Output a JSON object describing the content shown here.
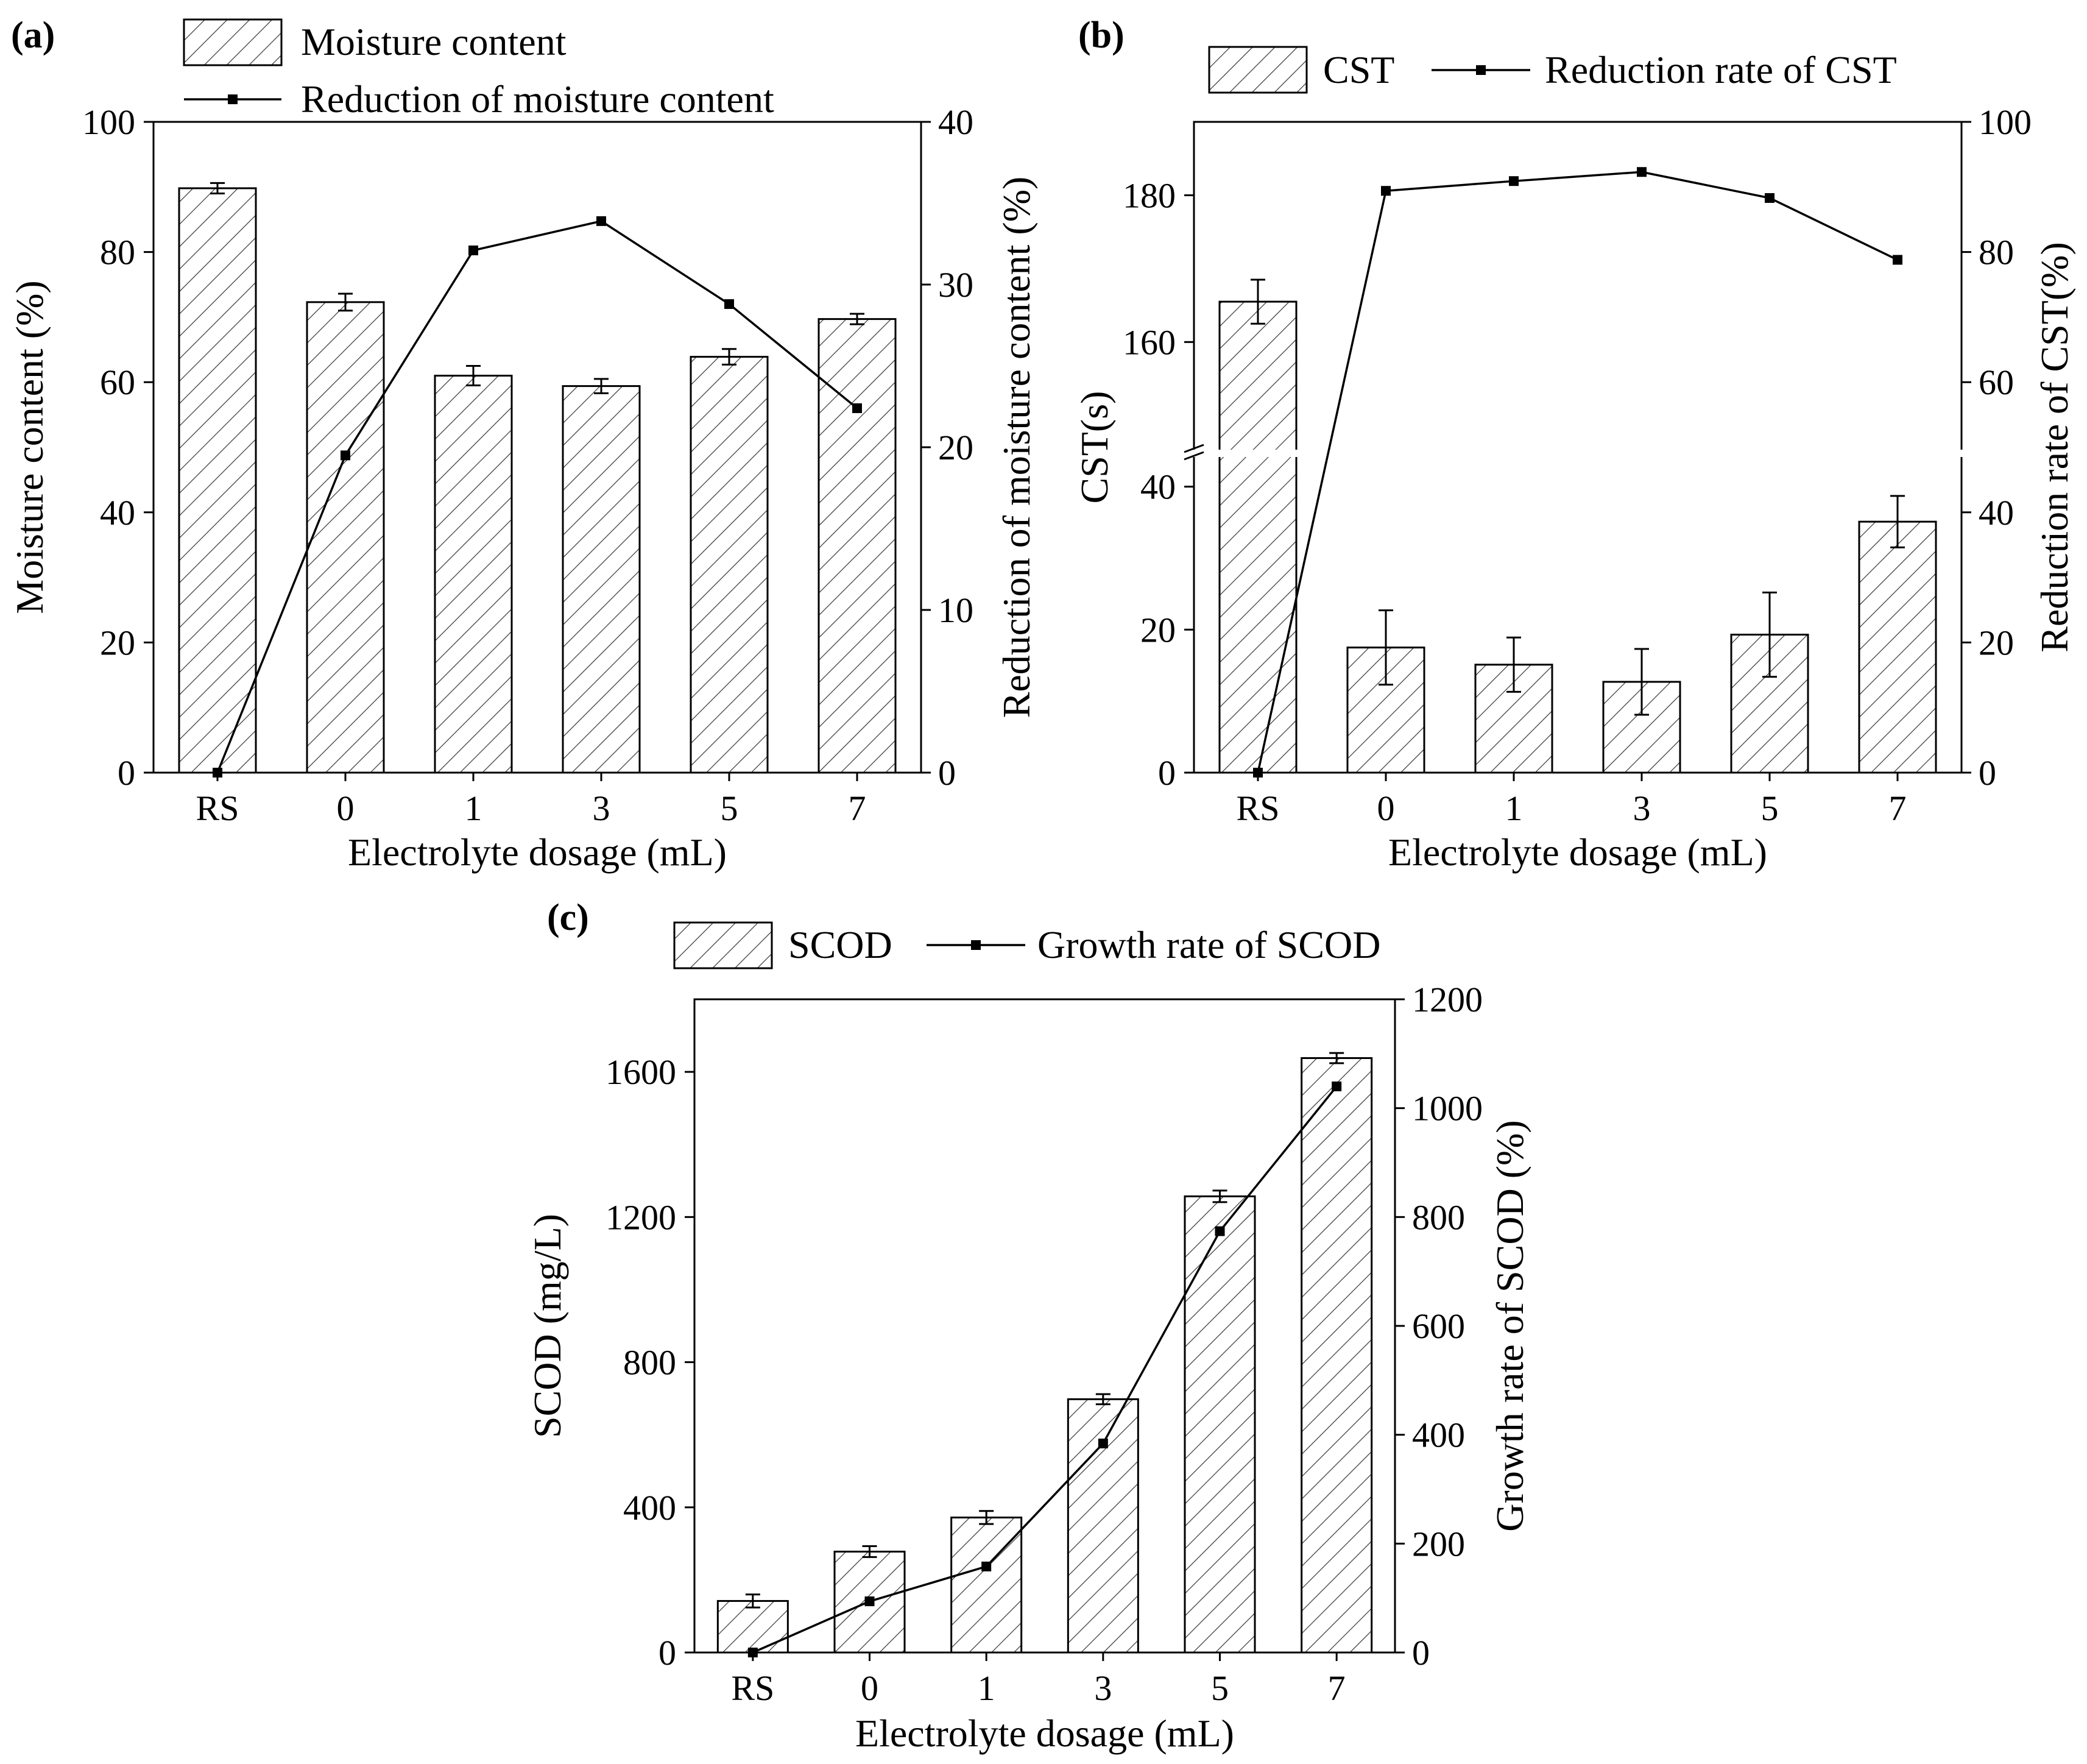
{
  "chart_data": [
    {
      "type": "bar+line",
      "panel_label": "(a)",
      "categories": [
        "RS",
        "0",
        "1",
        "3",
        "5",
        "7"
      ],
      "xlabel": "Electrolyte dosage (mL)",
      "bars": {
        "name": "Moisture content",
        "values": [
          89.8,
          72.3,
          61.0,
          59.4,
          63.9,
          69.7
        ],
        "errors": [
          0.8,
          1.3,
          1.5,
          1.1,
          1.2,
          0.8
        ]
      },
      "line": {
        "name": "Reduction of moisture content",
        "values": [
          0,
          19.5,
          32.1,
          33.9,
          28.8,
          22.4
        ]
      },
      "ylabel": "Moisture content (%)",
      "ylim": [
        0,
        100
      ],
      "yticks": [
        "0",
        "20",
        "40",
        "60",
        "80",
        "100"
      ],
      "y2label": "Reduction of moisture content (%)",
      "y2lim": [
        0,
        40
      ],
      "y2ticks": [
        "0",
        "10",
        "20",
        "30",
        "40"
      ]
    },
    {
      "type": "bar+line",
      "panel_label": "(b)",
      "categories": [
        "RS",
        "0",
        "1",
        "3",
        "5",
        "7"
      ],
      "xlabel": "Electrolyte dosage (mL)",
      "bars": {
        "name": "CST",
        "values": [
          165.5,
          17.5,
          15.1,
          12.7,
          19.3,
          35.1
        ],
        "errors": [
          3.0,
          5.2,
          3.8,
          4.6,
          5.9,
          3.6
        ]
      },
      "line": {
        "name": "Reduction rate of CST",
        "values": [
          0,
          89.4,
          90.9,
          92.3,
          88.3,
          78.8
        ]
      },
      "ylabel": "CST(s)",
      "ylim_lower": [
        0,
        45
      ],
      "ylim_upper": [
        145,
        190
      ],
      "axis_break": true,
      "yticks": [
        "0",
        "20",
        "40",
        "160",
        "180"
      ],
      "y2label": "Reduction rate of CST(%)",
      "y2lim": [
        0,
        100
      ],
      "y2ticks": [
        "0",
        "20",
        "40",
        "60",
        "80",
        "100"
      ]
    },
    {
      "type": "bar+line",
      "panel_label": "(c)",
      "categories": [
        "RS",
        "0",
        "1",
        "3",
        "5",
        "7"
      ],
      "xlabel": "Electrolyte dosage (mL)",
      "bars": {
        "name": "SCOD",
        "values": [
          142,
          278,
          372,
          698,
          1257,
          1638
        ],
        "errors": [
          18,
          15,
          18,
          14,
          16,
          14
        ]
      },
      "line": {
        "name": "Growth rate of SCOD",
        "values": [
          0,
          94,
          158,
          384,
          774,
          1040
        ]
      },
      "ylabel": "SCOD (mg/L)",
      "ylim": [
        0,
        1800
      ],
      "yticks": [
        "0",
        "400",
        "800",
        "1200",
        "1600"
      ],
      "y2label": "Growth rate of SCOD (%)",
      "y2lim": [
        0,
        1200
      ],
      "y2ticks": [
        "0",
        "200",
        "400",
        "600",
        "800",
        "1000",
        "1200"
      ]
    }
  ]
}
